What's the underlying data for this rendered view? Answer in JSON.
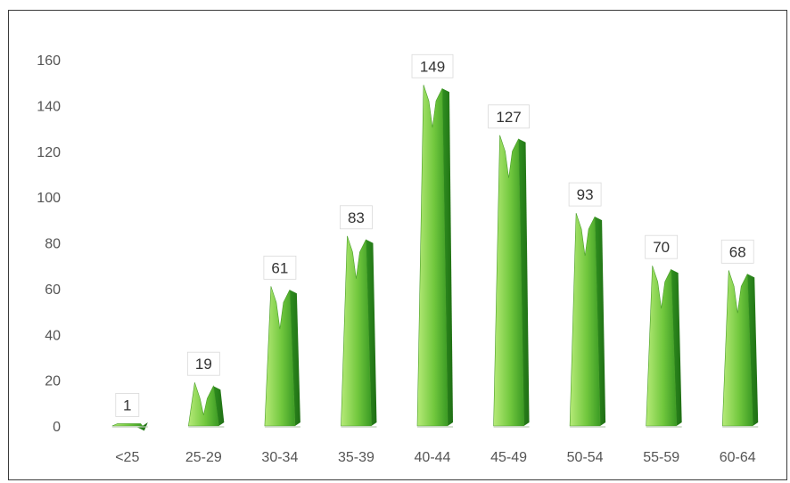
{
  "chart_data": {
    "type": "bar",
    "title": "",
    "xlabel": "",
    "ylabel": "",
    "categories": [
      "<25",
      "25-29",
      "30-34",
      "35-39",
      "40-44",
      "45-49",
      "50-54",
      "55-59",
      "60-64"
    ],
    "values": [
      1,
      19,
      61,
      83,
      149,
      127,
      93,
      70,
      68
    ],
    "ylim": [
      0,
      160
    ],
    "yticks": [
      0,
      20,
      40,
      60,
      80,
      100,
      120,
      140,
      160
    ],
    "grid": false,
    "legend": "none",
    "data_labels": true,
    "colors": {
      "bar_light": "#a8e06a",
      "bar_mid": "#6cc43a",
      "bar_dark": "#2f8f1f",
      "text": "#555555"
    }
  }
}
